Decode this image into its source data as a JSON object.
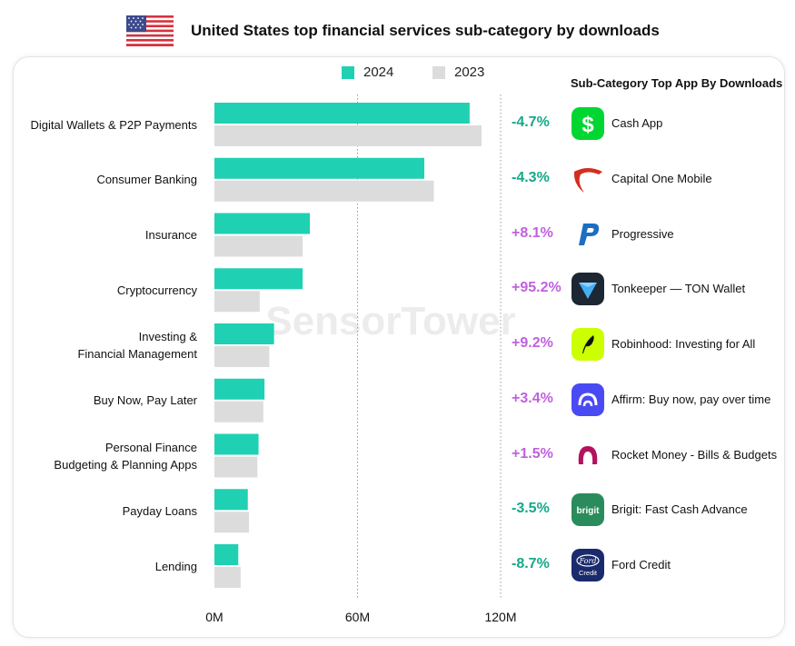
{
  "title": "United States top financial services sub-category by downloads",
  "panel_title": "Sub-Category Top App By Downloads",
  "watermark": "SensorTower",
  "colors": {
    "series_2024": "#1fd1b2",
    "series_2023": "#dcdcdc",
    "positive": "#c060e0",
    "negative": "#14a98a"
  },
  "chart_data": {
    "type": "bar",
    "orientation": "horizontal",
    "categories": [
      "Digital Wallets & P2P Payments",
      "Consumer Banking",
      "Insurance",
      "Cryptocurrency",
      "Investing & Financial Management",
      "Buy Now, Pay Later",
      "Personal Finance Budgeting & Planning Apps",
      "Payday Loans",
      "Lending"
    ],
    "category_lines": [
      [
        "Digital Wallets & P2P Payments"
      ],
      [
        "Consumer Banking"
      ],
      [
        "Insurance"
      ],
      [
        "Cryptocurrency"
      ],
      [
        "Investing &",
        "Financial Management"
      ],
      [
        "Buy Now, Pay Later"
      ],
      [
        "Personal Finance",
        "Budgeting & Planning Apps"
      ],
      [
        "Payday Loans"
      ],
      [
        "Lending"
      ]
    ],
    "series": [
      {
        "name": "2024",
        "values": [
          107,
          88,
          40,
          37,
          25,
          21,
          18.5,
          14,
          10
        ]
      },
      {
        "name": "2023",
        "values": [
          112,
          92,
          37,
          19,
          23,
          20.5,
          18,
          14.5,
          11
        ]
      }
    ],
    "xlim": [
      0,
      120
    ],
    "xticks": [
      0,
      60,
      120
    ],
    "xtick_labels": [
      "0M",
      "60M",
      "120M"
    ],
    "gridlines": "vertical-dotted",
    "legend": "top"
  },
  "changes": [
    "-4.7%",
    "-4.3%",
    "+8.1%",
    "+95.2%",
    "+9.2%",
    "+3.4%",
    "+1.5%",
    "-3.5%",
    "-8.7%"
  ],
  "apps": [
    {
      "name": "Cash App",
      "icon": "cash-app-icon"
    },
    {
      "name": "Capital One Mobile",
      "icon": "capital-one-icon"
    },
    {
      "name": "Progressive",
      "icon": "progressive-icon"
    },
    {
      "name": "Tonkeeper — TON Wallet",
      "icon": "tonkeeper-icon"
    },
    {
      "name": "Robinhood: Investing for All",
      "icon": "robinhood-icon"
    },
    {
      "name": "Affirm: Buy now, pay over time",
      "icon": "affirm-icon"
    },
    {
      "name": "Rocket Money - Bills & Budgets",
      "icon": "rocket-money-icon"
    },
    {
      "name": "Brigit: Fast Cash Advance",
      "icon": "brigit-icon"
    },
    {
      "name": "Ford Credit",
      "icon": "ford-credit-icon"
    }
  ],
  "app_icon_text": {
    "brigit": "brigit",
    "ford": "Ford",
    "ford_sub": "Credit"
  }
}
